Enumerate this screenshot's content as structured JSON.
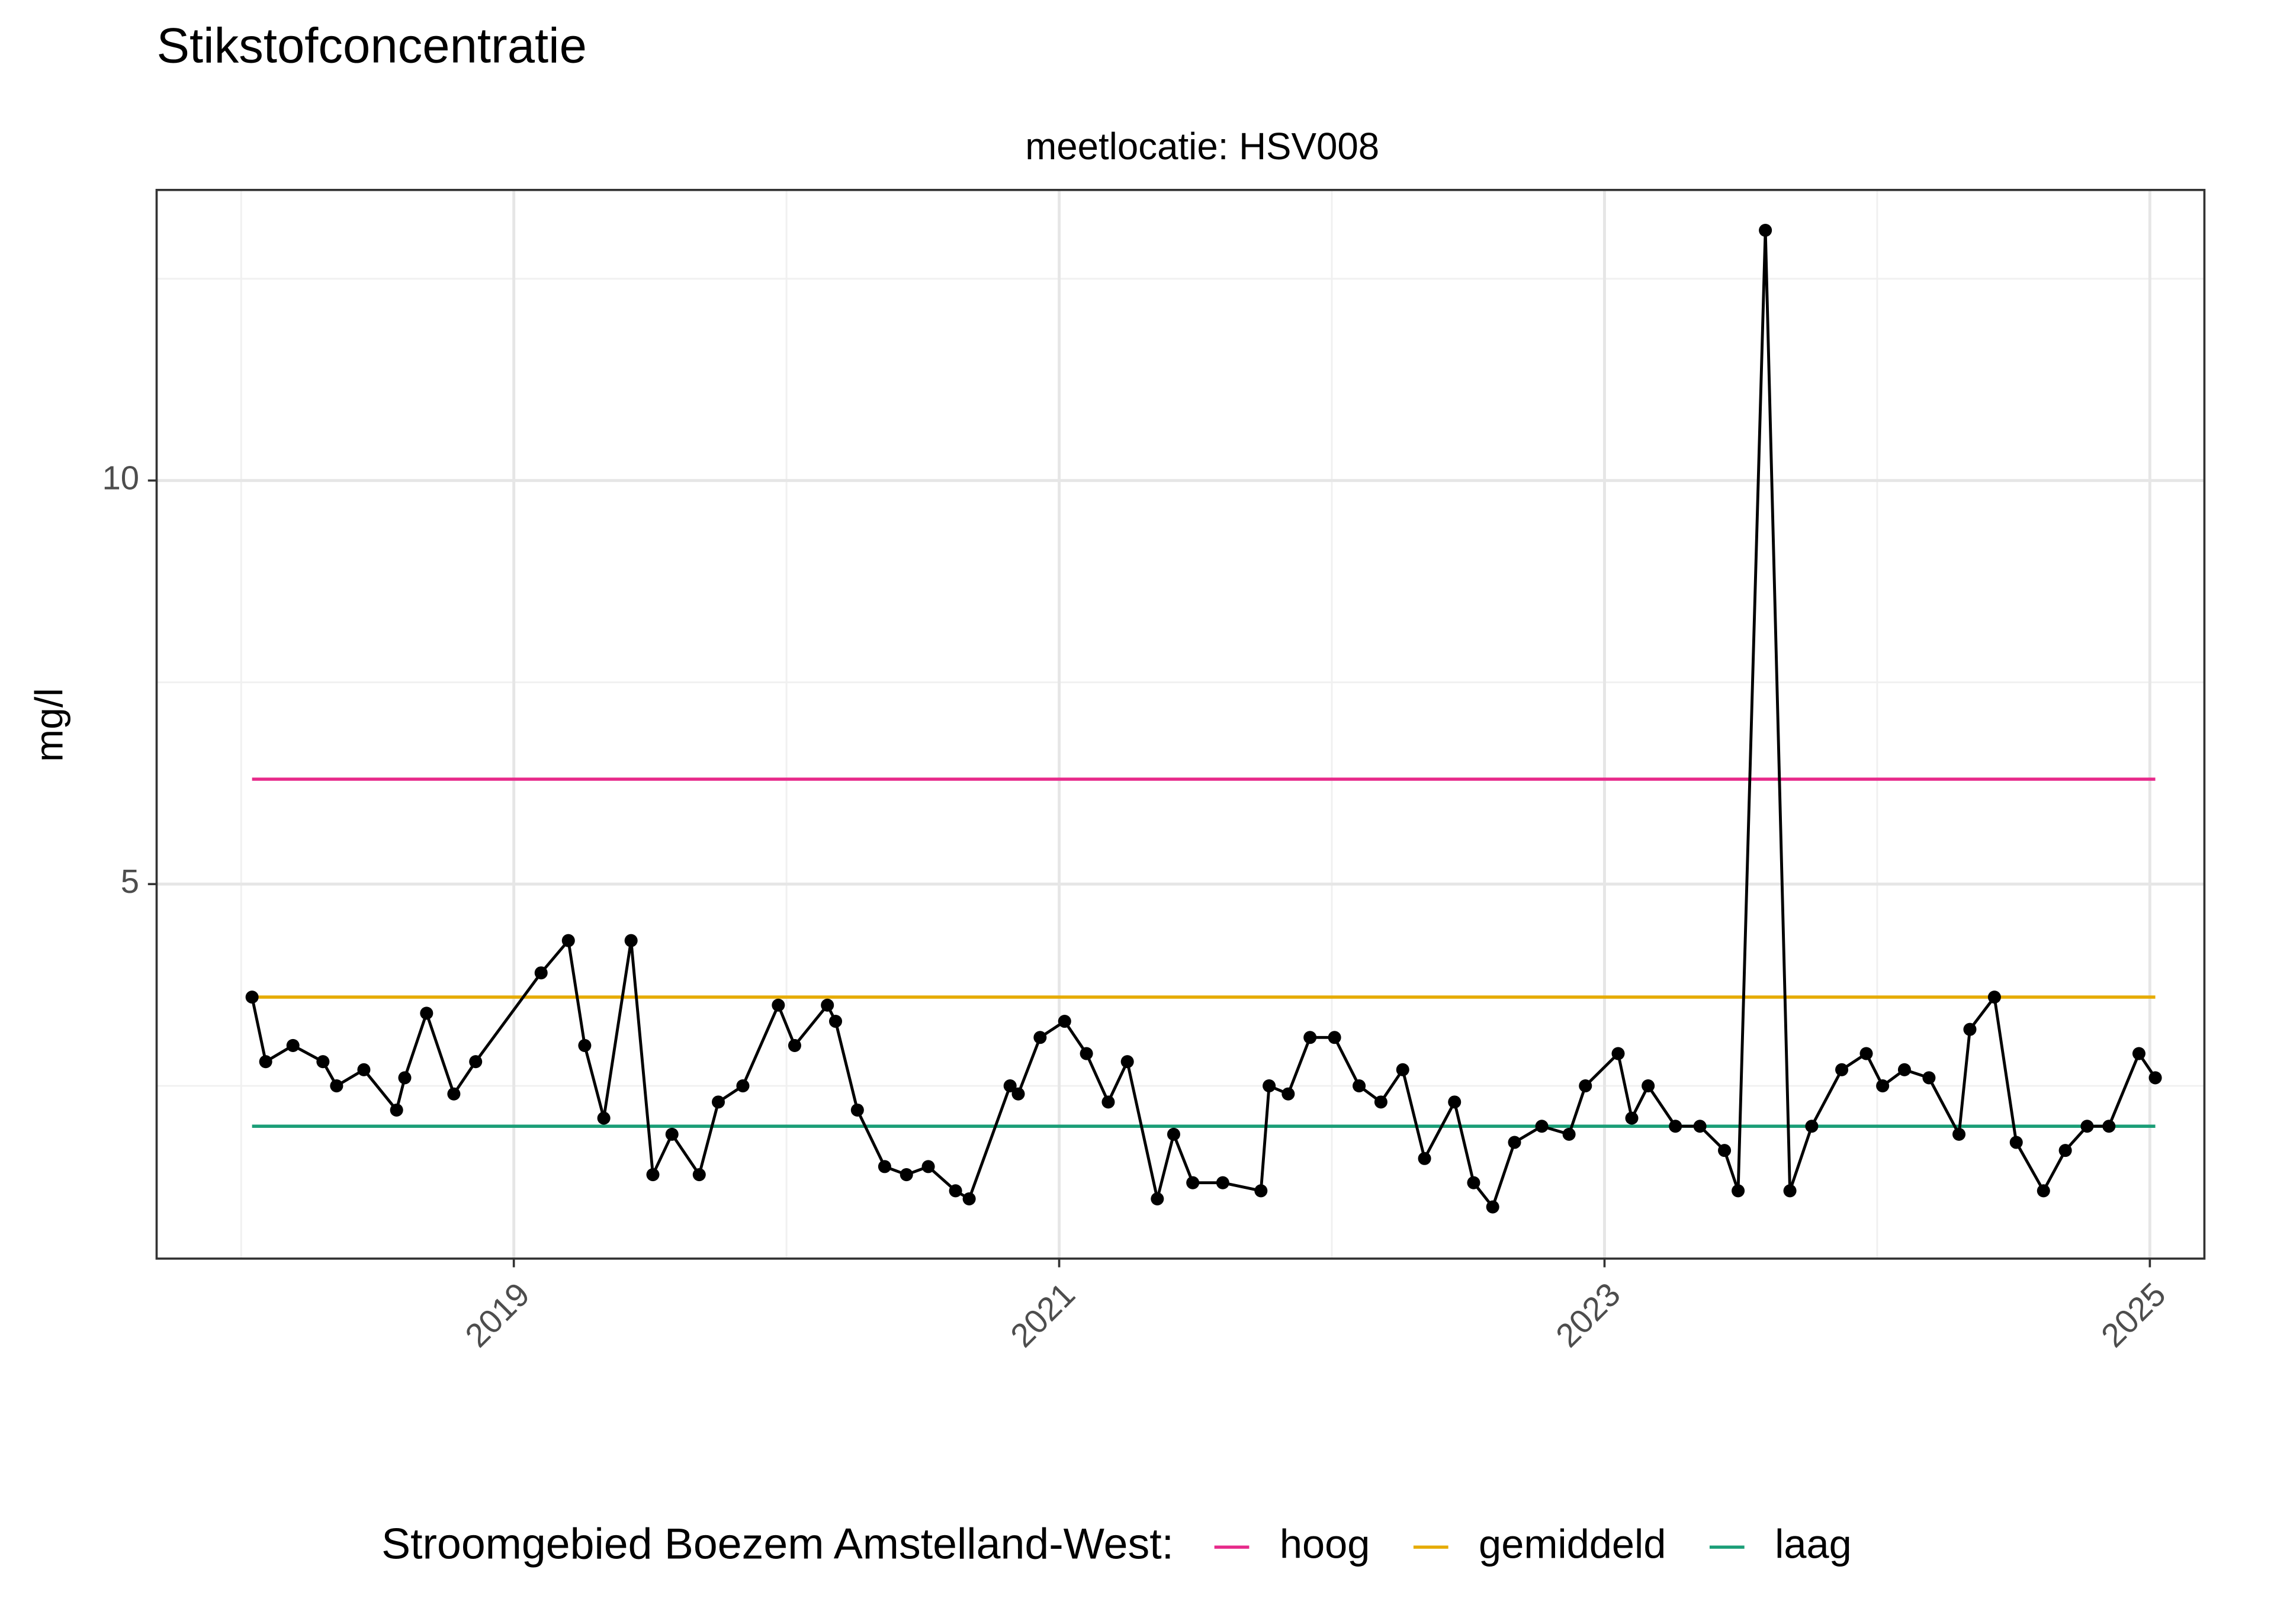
{
  "chart_data": {
    "type": "line",
    "title": "Stikstofconcentratie",
    "subtitle": "meetlocatie: HSV008",
    "ylabel": "mg/l",
    "legend_title": "Stroomgebied Boezem Amstelland-West:",
    "legend_position": "bottom",
    "grid": true,
    "xlim": [
      2017.69,
      2025.2
    ],
    "xticks": [
      2019,
      2021,
      2023,
      2025
    ],
    "minor_xticks": [
      2018,
      2020,
      2022,
      2024
    ],
    "ylim": [
      0.36,
      13.6
    ],
    "yticks": [
      5,
      10
    ],
    "minor_yticks": [
      2.5,
      7.5,
      12.5
    ],
    "x": [
      2018.04,
      2018.09,
      2018.19,
      2018.3,
      2018.35,
      2018.45,
      2018.57,
      2018.6,
      2018.68,
      2018.78,
      2018.86,
      2019.1,
      2019.2,
      2019.26,
      2019.33,
      2019.43,
      2019.51,
      2019.58,
      2019.68,
      2019.75,
      2019.84,
      2019.97,
      2020.03,
      2020.15,
      2020.18,
      2020.26,
      2020.36,
      2020.44,
      2020.52,
      2020.62,
      2020.67,
      2020.82,
      2020.85,
      2020.93,
      2021.02,
      2021.1,
      2021.18,
      2021.25,
      2021.36,
      2021.42,
      2021.49,
      2021.6,
      2021.74,
      2021.77,
      2021.84,
      2021.92,
      2022.01,
      2022.1,
      2022.18,
      2022.26,
      2022.34,
      2022.45,
      2022.52,
      2022.59,
      2022.67,
      2022.77,
      2022.87,
      2022.93,
      2023.05,
      2023.1,
      2023.16,
      2023.26,
      2023.35,
      2023.44,
      2023.49,
      2023.59,
      2023.68,
      2023.76,
      2023.87,
      2023.96,
      2024.02,
      2024.1,
      2024.19,
      2024.3,
      2024.34,
      2024.43,
      2024.51,
      2024.61,
      2024.69,
      2024.77,
      2024.85,
      2024.96,
      2025.02
    ],
    "series": [
      {
        "color": "#000000",
        "values": [
          3.6,
          2.8,
          3.0,
          2.8,
          2.5,
          2.7,
          2.2,
          2.6,
          3.4,
          2.4,
          2.8,
          3.9,
          4.3,
          3.0,
          2.1,
          4.3,
          1.4,
          1.9,
          1.4,
          2.3,
          2.5,
          3.5,
          3.0,
          3.5,
          3.3,
          2.2,
          1.5,
          1.4,
          1.5,
          1.2,
          1.1,
          2.5,
          2.4,
          3.1,
          3.3,
          2.9,
          2.3,
          2.8,
          1.1,
          1.9,
          1.3,
          1.3,
          1.2,
          2.5,
          2.4,
          3.1,
          3.1,
          2.5,
          2.3,
          2.7,
          1.6,
          2.3,
          1.3,
          1.0,
          1.8,
          2.0,
          1.9,
          2.5,
          2.9,
          2.1,
          2.5,
          2.0,
          2.0,
          1.7,
          1.2,
          13.1,
          1.2,
          2.0,
          2.7,
          2.9,
          2.5,
          2.7,
          2.6,
          1.9,
          3.2,
          3.6,
          1.8,
          1.2,
          1.7,
          2.0,
          2.0,
          2.9,
          2.6
        ]
      }
    ],
    "reference_lines": [
      {
        "name": "hoog",
        "color": "#e7298a",
        "value": 6.3
      },
      {
        "name": "gemiddeld",
        "color": "#e6ab02",
        "value": 3.6
      },
      {
        "name": "laag",
        "color": "#1b9e77",
        "value": 2.0
      }
    ]
  }
}
